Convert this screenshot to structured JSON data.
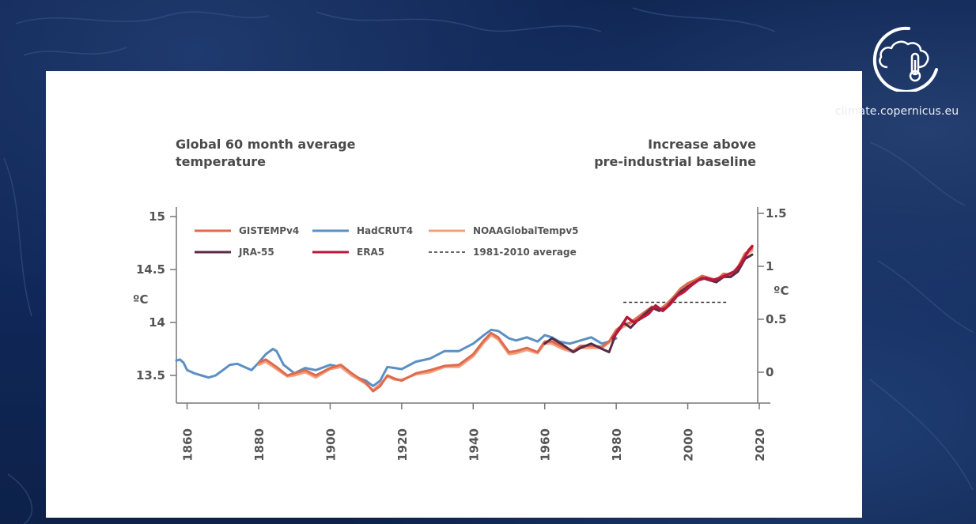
{
  "brand": {
    "site": "climate.copernicus.eu",
    "logo_icon": "thermometer-cloud-icon"
  },
  "chart_data": {
    "type": "line",
    "title_left": [
      "Global 60 month average",
      "temperature"
    ],
    "title_right": [
      "Increase above",
      "pre-industrial baseline"
    ],
    "ylabel": "ºC",
    "ylabel_right": "ºC",
    "xlim": [
      1857,
      2020
    ],
    "ylim": [
      13.25,
      15.1
    ],
    "y2_offset": 13.53,
    "x_ticks": [
      "1860",
      "1880",
      "1900",
      "1920",
      "1940",
      "1960",
      "1980",
      "2000",
      "2020"
    ],
    "y_ticks": [
      "15",
      "14.5",
      "14",
      "13.5"
    ],
    "y2_ticks": [
      "1.5",
      "1",
      "0.5",
      "0"
    ],
    "grid": false,
    "legend_position": "top-left",
    "reference_line": {
      "name": "1981-2010 average",
      "x": [
        1982,
        2011
      ],
      "y": 14.19
    },
    "series": [
      {
        "name": "HadCRUT4",
        "color": "#5b8fc4",
        "x": [
          1857,
          1858,
          1859,
          1860,
          1862,
          1864,
          1866,
          1868,
          1870,
          1872,
          1874,
          1876,
          1878,
          1880,
          1882,
          1884,
          1885,
          1887,
          1890,
          1893,
          1896,
          1900,
          1903,
          1906,
          1910,
          1912,
          1914,
          1916,
          1918,
          1920,
          1924,
          1928,
          1932,
          1936,
          1940,
          1943,
          1945,
          1947,
          1950,
          1952,
          1955,
          1958,
          1960,
          1962,
          1964,
          1967,
          1970,
          1973,
          1976,
          1978,
          1980
        ],
        "y": [
          13.64,
          13.65,
          13.62,
          13.55,
          13.52,
          13.5,
          13.48,
          13.5,
          13.55,
          13.6,
          13.61,
          13.58,
          13.55,
          13.62,
          13.7,
          13.75,
          13.73,
          13.6,
          13.52,
          13.57,
          13.55,
          13.6,
          13.58,
          13.5,
          13.45,
          13.4,
          13.45,
          13.58,
          13.57,
          13.56,
          13.63,
          13.66,
          13.73,
          13.73,
          13.8,
          13.88,
          13.93,
          13.92,
          13.85,
          13.83,
          13.86,
          13.82,
          13.88,
          13.86,
          13.82,
          13.8,
          13.83,
          13.86,
          13.8,
          13.82,
          13.85
        ]
      },
      {
        "name": "GISTEMPv4",
        "color": "#e06a4e",
        "x": [
          1880,
          1882,
          1885,
          1888,
          1890,
          1893,
          1896,
          1900,
          1903,
          1906,
          1910,
          1912,
          1914,
          1916,
          1918,
          1920,
          1924,
          1928,
          1932,
          1936,
          1940,
          1943,
          1945,
          1947,
          1950,
          1952,
          1955,
          1958,
          1960,
          1962,
          1965,
          1968,
          1970,
          1973,
          1976,
          1978,
          1980,
          1982,
          1984,
          1986,
          1988,
          1990,
          1992,
          1994,
          1996,
          1998,
          2000,
          2002,
          2004,
          2006,
          2008,
          2010,
          2012,
          2014,
          2016,
          2018
        ],
        "y": [
          13.62,
          13.65,
          13.58,
          13.5,
          13.52,
          13.55,
          13.5,
          13.57,
          13.6,
          13.52,
          13.43,
          13.35,
          13.4,
          13.5,
          13.47,
          13.45,
          13.52,
          13.55,
          13.59,
          13.6,
          13.7,
          13.83,
          13.9,
          13.86,
          13.72,
          13.73,
          13.76,
          13.72,
          13.82,
          13.82,
          13.77,
          13.73,
          13.78,
          13.78,
          13.77,
          13.82,
          13.93,
          13.98,
          14.0,
          14.05,
          14.1,
          14.15,
          14.12,
          14.17,
          14.24,
          14.32,
          14.37,
          14.4,
          14.44,
          14.42,
          14.4,
          14.46,
          14.45,
          14.52,
          14.65,
          14.7
        ]
      },
      {
        "name": "NOAAGlobalTempv5",
        "color": "#f2a07c",
        "x": [
          1880,
          1882,
          1885,
          1888,
          1890,
          1893,
          1896,
          1900,
          1903,
          1906,
          1910,
          1912,
          1914,
          1916,
          1918,
          1920,
          1924,
          1928,
          1932,
          1936,
          1940,
          1943,
          1945,
          1947,
          1950,
          1952,
          1955,
          1958,
          1960,
          1962,
          1965,
          1968,
          1970,
          1973,
          1976,
          1978,
          1980,
          1982,
          1984,
          1986,
          1988,
          1990,
          1992,
          1994,
          1996,
          1998,
          2000,
          2002,
          2004,
          2006,
          2008,
          2010,
          2012,
          2014,
          2016,
          2018
        ],
        "y": [
          13.6,
          13.63,
          13.56,
          13.49,
          13.5,
          13.53,
          13.48,
          13.56,
          13.58,
          13.5,
          13.42,
          13.36,
          13.42,
          13.49,
          13.46,
          13.46,
          13.51,
          13.53,
          13.58,
          13.58,
          13.68,
          13.81,
          13.88,
          13.84,
          13.7,
          13.71,
          13.74,
          13.71,
          13.8,
          13.8,
          13.75,
          13.72,
          13.76,
          13.76,
          13.76,
          13.81,
          13.92,
          13.96,
          13.99,
          14.04,
          14.09,
          14.14,
          14.11,
          14.16,
          14.23,
          14.3,
          14.36,
          14.39,
          14.43,
          14.41,
          14.39,
          14.45,
          14.44,
          14.5,
          14.63,
          14.68
        ]
      },
      {
        "name": "JRA-55",
        "color": "#5a2a46",
        "x": [
          1960,
          1962,
          1965,
          1968,
          1970,
          1973,
          1976,
          1978,
          1980,
          1982,
          1984,
          1986,
          1988,
          1990,
          1992,
          1994,
          1996,
          1998,
          2000,
          2002,
          2004,
          2006,
          2008,
          2010,
          2012,
          2014,
          2016,
          2018
        ],
        "y": [
          13.8,
          13.85,
          13.79,
          13.72,
          13.76,
          13.8,
          13.75,
          13.72,
          13.9,
          14.0,
          13.95,
          14.02,
          14.08,
          14.14,
          14.11,
          14.14,
          14.22,
          14.29,
          14.34,
          14.38,
          14.42,
          14.4,
          14.38,
          14.43,
          14.43,
          14.48,
          14.6,
          14.64
        ]
      },
      {
        "name": "ERA5",
        "color": "#b8193a",
        "x": [
          1979,
          1981,
          1983,
          1985,
          1987,
          1989,
          1991,
          1993,
          1995,
          1997,
          1999,
          2001,
          2003,
          2005,
          2007,
          2009,
          2011,
          2013,
          2015,
          2017,
          2018
        ],
        "y": [
          13.85,
          13.94,
          14.05,
          14.0,
          14.04,
          14.08,
          14.16,
          14.11,
          14.17,
          14.25,
          14.29,
          14.35,
          14.4,
          14.42,
          14.4,
          14.42,
          14.45,
          14.48,
          14.56,
          14.68,
          14.72
        ]
      }
    ]
  }
}
